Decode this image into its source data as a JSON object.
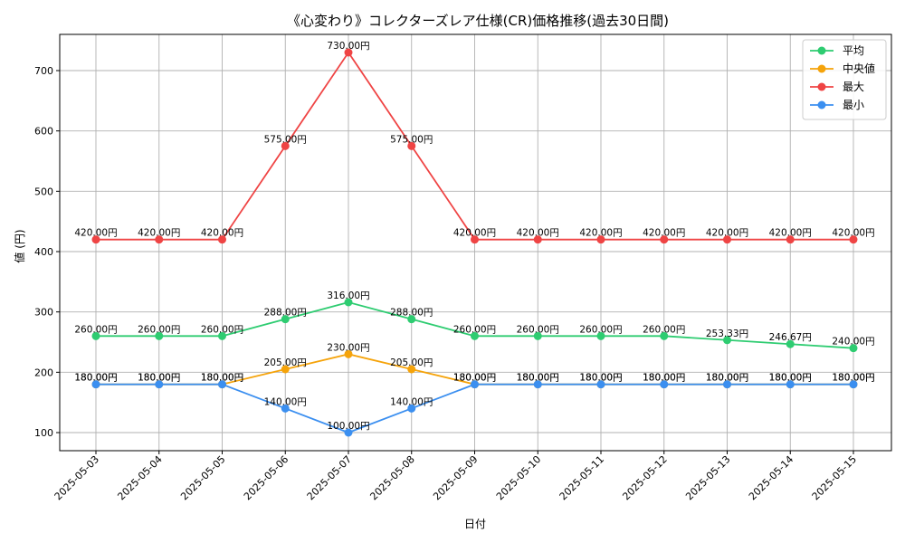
{
  "chart_data": {
    "type": "line",
    "title": "《心変わり》コレクターズレア仕様(CR)価格推移(過去30日間)",
    "xlabel": "日付",
    "ylabel": "値 (円)",
    "x": [
      "2025-05-03",
      "2025-05-04",
      "2025-05-05",
      "2025-05-06",
      "2025-05-07",
      "2025-05-08",
      "2025-05-09",
      "2025-05-10",
      "2025-05-11",
      "2025-05-12",
      "2025-05-13",
      "2025-05-14",
      "2025-05-15"
    ],
    "ylim": [
      70,
      760
    ],
    "yticks": [
      100,
      200,
      300,
      400,
      500,
      600,
      700
    ],
    "grid": true,
    "legend_position": "top-right",
    "series": [
      {
        "name": "平均",
        "color": "#2ecc71",
        "values": [
          260,
          260,
          260,
          288,
          316,
          288,
          260,
          260,
          260,
          260,
          253.33,
          246.67,
          240
        ],
        "labels": [
          "260.00円",
          "260.00円",
          "260.00円",
          "288.00円",
          "316.00円",
          "288.00円",
          "260.00円",
          "260.00円",
          "260.00円",
          "260.00円",
          "253.33円",
          "246.67円",
          "240.00円"
        ]
      },
      {
        "name": "中央値",
        "color": "#f5a30a",
        "values": [
          180,
          180,
          180,
          205,
          230,
          205,
          180,
          180,
          180,
          180,
          180,
          180,
          180
        ],
        "labels": [
          "180.00円",
          "180.00円",
          "180.00円",
          "205.00円",
          "230.00円",
          "205.00円",
          "180.00円",
          "180.00円",
          "180.00円",
          "180.00円",
          "180.00円",
          "180.00円",
          "180.00円"
        ]
      },
      {
        "name": "最大",
        "color": "#ef4444",
        "values": [
          420,
          420,
          420,
          575,
          730,
          575,
          420,
          420,
          420,
          420,
          420,
          420,
          420
        ],
        "labels": [
          "420.00円",
          "420.00円",
          "420.00円",
          "575.00円",
          "730.00円",
          "575.00円",
          "420.00円",
          "420.00円",
          "420.00円",
          "420.00円",
          "420.00円",
          "420.00円",
          "420.00円"
        ]
      },
      {
        "name": "最小",
        "color": "#3b8ff0",
        "values": [
          180,
          180,
          180,
          140,
          100,
          140,
          180,
          180,
          180,
          180,
          180,
          180,
          180
        ],
        "labels": [
          "180.00円",
          "180.00円",
          "180.00円",
          "140.00円",
          "100.00円",
          "140.00円",
          "180.00円",
          "180.00円",
          "180.00円",
          "180.00円",
          "180.00円",
          "180.00円",
          "180.00円"
        ]
      }
    ]
  }
}
